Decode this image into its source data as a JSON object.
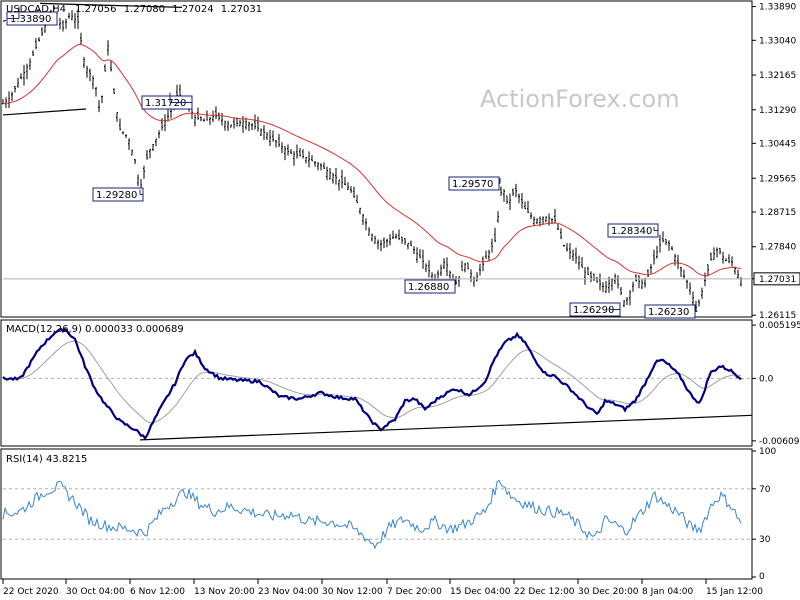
{
  "header": {
    "symbol": "USDCAD,H4",
    "o": "1.27056",
    "h": "1.27080",
    "l": "1.27024",
    "c": "1.27031"
  },
  "watermark": "ActionForex.com",
  "chart_data": [
    {
      "type": "candlestick",
      "title": "USDCAD,H4",
      "ylim": [
        1.2612,
        1.3398
      ],
      "yticks": [
        "1.33890",
        "1.33040",
        "1.32165",
        "1.31290",
        "1.30445",
        "1.29565",
        "1.28715",
        "1.27840",
        "1.27031",
        "1.26115"
      ],
      "price_label": "1.27031",
      "series": [
        {
          "name": "MA",
          "color": "#e03030"
        }
      ],
      "swing_labels": [
        {
          "label": "1.33890",
          "t": 19,
          "value": 1.3389
        },
        {
          "label": "1.31720",
          "t": 170,
          "value": 1.3172
        },
        {
          "label": "1.29280",
          "t": 140,
          "value": 1.2928
        },
        {
          "label": "1.29570",
          "t": 500,
          "value": 1.2957
        },
        {
          "label": "1.26880",
          "t": 455,
          "value": 1.2688
        },
        {
          "label": "1.28340",
          "t": 654,
          "value": 1.2834
        },
        {
          "label": "1.26290",
          "t": 610,
          "value": 1.2629
        },
        {
          "label": "1.26230",
          "t": 697,
          "value": 1.2623
        }
      ],
      "colors": {
        "up": "#000000",
        "down": "#000000",
        "trend": "#000000"
      }
    },
    {
      "type": "line",
      "title": "MACD(12,26,9) 0.000033 0.000689",
      "ylim": [
        -0.0064,
        0.0055
      ],
      "yticks": [
        "0.005195",
        "0.0",
        "-0.006093"
      ],
      "series": [
        {
          "name": "MACD",
          "color": "#000080"
        },
        {
          "name": "Signal",
          "color": "#a0a0a0"
        }
      ]
    },
    {
      "type": "line",
      "title": "RSI(14) 43.8215",
      "ylim": [
        0,
        100
      ],
      "yticks": [
        "100",
        "70",
        "30",
        "0"
      ],
      "levels": [
        70,
        30
      ],
      "series": [
        {
          "name": "RSI",
          "color": "#3a86d0"
        }
      ]
    }
  ],
  "xaxis": {
    "labels": [
      "22 Oct 2020",
      "30 Oct 04:00",
      "6 Nov 12:00",
      "13 Nov 20:00",
      "23 Nov 04:00",
      "30 Nov 12:00",
      "7 Dec 20:00",
      "15 Dec 04:00",
      "22 Dec 12:00",
      "30 Dec 20:00",
      "8 Jan 04:00",
      "15 Jan 12:00"
    ]
  }
}
